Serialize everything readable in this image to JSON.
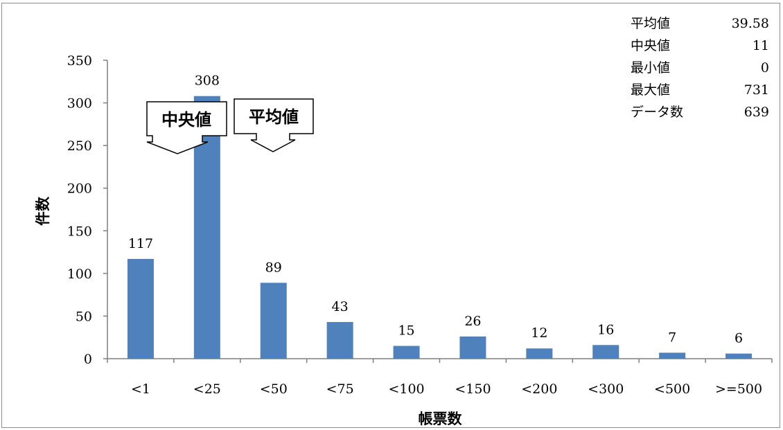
{
  "chart_data": {
    "type": "bar",
    "categories": [
      "<1",
      "<25",
      "<50",
      "<75",
      "<100",
      "<150",
      "<200",
      "<300",
      "<500",
      ">=500"
    ],
    "values": [
      117,
      308,
      89,
      43,
      15,
      26,
      12,
      16,
      7,
      6
    ],
    "xlabel": "帳票数",
    "ylabel": "件数",
    "ylim": [
      0,
      350
    ],
    "yticks": [
      "0",
      "50",
      "100",
      "150",
      "200",
      "250",
      "300",
      "350"
    ],
    "bar_color": "#4f81bd",
    "grid": false,
    "legend": "none"
  },
  "stats": [
    {
      "label": "平均値",
      "value": "39.58"
    },
    {
      "label": "中央値",
      "value": "11"
    },
    {
      "label": "最小値",
      "value": "0"
    },
    {
      "label": "最大値",
      "value": "731"
    },
    {
      "label": "データ数",
      "value": "639"
    }
  ],
  "callouts": {
    "median": "中央値",
    "mean": "平均値"
  }
}
